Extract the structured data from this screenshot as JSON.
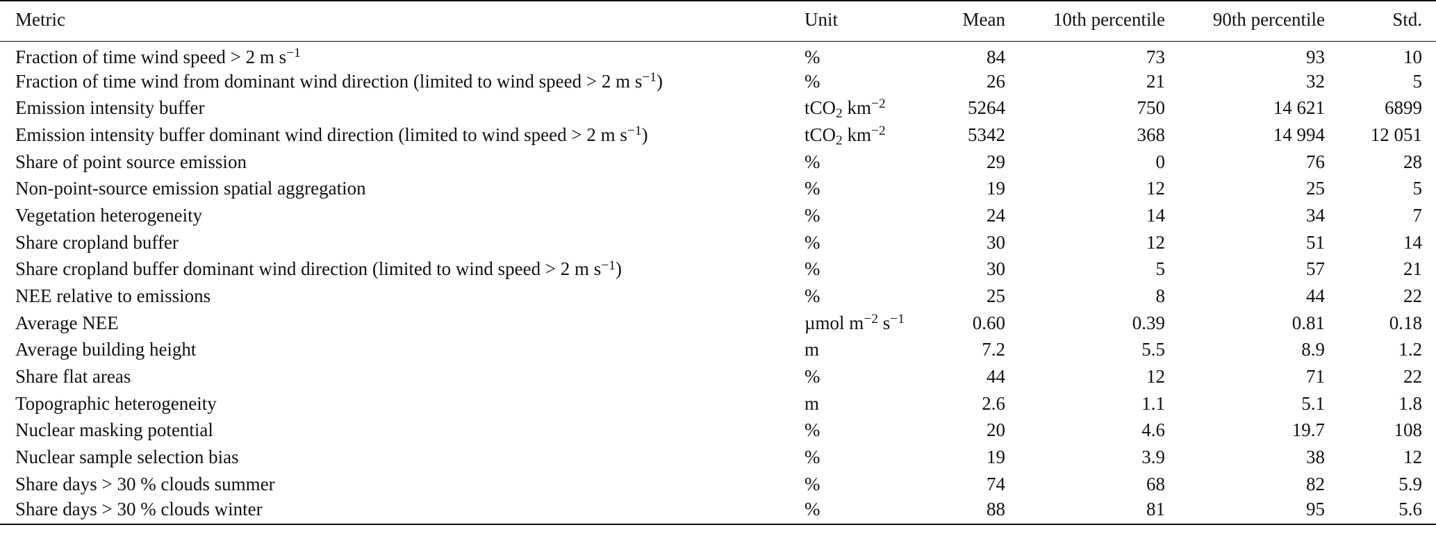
{
  "table": {
    "headers": {
      "metric": "Metric",
      "unit": "Unit",
      "mean": "Mean",
      "p10": "10th percentile",
      "p90": "90th percentile",
      "std": "Std."
    },
    "rows": [
      {
        "metric": "Fraction of time wind speed > 2 m s⁻¹",
        "metric_parts": [
          [
            "t",
            "Fraction of time wind speed > 2 m s"
          ],
          [
            "sup",
            "−1"
          ]
        ],
        "unit_parts": [
          [
            "t",
            "%"
          ]
        ],
        "mean": "84",
        "p10": "73",
        "p90": "93",
        "std": "10"
      },
      {
        "metric": "Fraction of time wind from dominant wind direction (limited to wind speed > 2 m s⁻¹)",
        "metric_parts": [
          [
            "t",
            "Fraction of time wind from dominant wind direction (limited to wind speed > 2 m s"
          ],
          [
            "sup",
            "−1"
          ],
          [
            "t",
            ")"
          ]
        ],
        "unit_parts": [
          [
            "t",
            "%"
          ]
        ],
        "mean": "26",
        "p10": "21",
        "p90": "32",
        "std": "5"
      },
      {
        "metric": "Emission intensity buffer",
        "metric_parts": [
          [
            "t",
            "Emission intensity buffer"
          ]
        ],
        "unit_parts": [
          [
            "t",
            "tCO"
          ],
          [
            "sub",
            "2"
          ],
          [
            "t",
            " km"
          ],
          [
            "sup",
            "−2"
          ]
        ],
        "mean": "5264",
        "p10": "750",
        "p90": "14 621",
        "std": "6899"
      },
      {
        "metric": "Emission intensity buffer dominant wind direction (limited to wind speed > 2 m s⁻¹)",
        "metric_parts": [
          [
            "t",
            "Emission intensity buffer dominant wind direction (limited to wind speed > 2 m s"
          ],
          [
            "sup",
            "−1"
          ],
          [
            "t",
            ")"
          ]
        ],
        "unit_parts": [
          [
            "t",
            "tCO"
          ],
          [
            "sub",
            "2"
          ],
          [
            "t",
            " km"
          ],
          [
            "sup",
            "−2"
          ]
        ],
        "mean": "5342",
        "p10": "368",
        "p90": "14 994",
        "std": "12 051"
      },
      {
        "metric": "Share of point source emission",
        "metric_parts": [
          [
            "t",
            "Share of point source emission"
          ]
        ],
        "unit_parts": [
          [
            "t",
            "%"
          ]
        ],
        "mean": "29",
        "p10": "0",
        "p90": "76",
        "std": "28"
      },
      {
        "metric": "Non-point-source emission spatial aggregation",
        "metric_parts": [
          [
            "t",
            "Non-point-source emission spatial aggregation"
          ]
        ],
        "unit_parts": [
          [
            "t",
            "%"
          ]
        ],
        "mean": "19",
        "p10": "12",
        "p90": "25",
        "std": "5"
      },
      {
        "metric": "Vegetation heterogeneity",
        "metric_parts": [
          [
            "t",
            "Vegetation heterogeneity"
          ]
        ],
        "unit_parts": [
          [
            "t",
            "%"
          ]
        ],
        "mean": "24",
        "p10": "14",
        "p90": "34",
        "std": "7"
      },
      {
        "metric": "Share cropland buffer",
        "metric_parts": [
          [
            "t",
            "Share cropland buffer"
          ]
        ],
        "unit_parts": [
          [
            "t",
            "%"
          ]
        ],
        "mean": "30",
        "p10": "12",
        "p90": "51",
        "std": "14"
      },
      {
        "metric": "Share cropland buffer dominant wind direction (limited to wind speed > 2 m s⁻¹)",
        "metric_parts": [
          [
            "t",
            "Share cropland buffer dominant wind direction (limited to wind speed > 2 m s"
          ],
          [
            "sup",
            "−1"
          ],
          [
            "t",
            ")"
          ]
        ],
        "unit_parts": [
          [
            "t",
            "%"
          ]
        ],
        "mean": "30",
        "p10": "5",
        "p90": "57",
        "std": "21"
      },
      {
        "metric": "NEE relative to emissions",
        "metric_parts": [
          [
            "t",
            "NEE relative to emissions"
          ]
        ],
        "unit_parts": [
          [
            "t",
            "%"
          ]
        ],
        "mean": "25",
        "p10": "8",
        "p90": "44",
        "std": "22"
      },
      {
        "metric": "Average NEE",
        "metric_parts": [
          [
            "t",
            "Average NEE"
          ]
        ],
        "unit_parts": [
          [
            "t",
            "µmol m"
          ],
          [
            "sup",
            "−2"
          ],
          [
            "t",
            " s"
          ],
          [
            "sup",
            "−1"
          ]
        ],
        "mean": "0.60",
        "p10": "0.39",
        "p90": "0.81",
        "std": "0.18"
      },
      {
        "metric": "Average building height",
        "metric_parts": [
          [
            "t",
            "Average building height"
          ]
        ],
        "unit_parts": [
          [
            "t",
            "m"
          ]
        ],
        "mean": "7.2",
        "p10": "5.5",
        "p90": "8.9",
        "std": "1.2"
      },
      {
        "metric": "Share flat areas",
        "metric_parts": [
          [
            "t",
            "Share flat areas"
          ]
        ],
        "unit_parts": [
          [
            "t",
            "%"
          ]
        ],
        "mean": "44",
        "p10": "12",
        "p90": "71",
        "std": "22"
      },
      {
        "metric": "Topographic heterogeneity",
        "metric_parts": [
          [
            "t",
            "Topographic heterogeneity"
          ]
        ],
        "unit_parts": [
          [
            "t",
            "m"
          ]
        ],
        "mean": "2.6",
        "p10": "1.1",
        "p90": "5.1",
        "std": "1.8"
      },
      {
        "metric": "Nuclear masking potential",
        "metric_parts": [
          [
            "t",
            "Nuclear masking potential"
          ]
        ],
        "unit_parts": [
          [
            "t",
            "%"
          ]
        ],
        "mean": "20",
        "p10": "4.6",
        "p90": "19.7",
        "std": "108"
      },
      {
        "metric": "Nuclear sample selection bias",
        "metric_parts": [
          [
            "t",
            "Nuclear sample selection bias"
          ]
        ],
        "unit_parts": [
          [
            "t",
            "%"
          ]
        ],
        "mean": "19",
        "p10": "3.9",
        "p90": "38",
        "std": "12"
      },
      {
        "metric": "Share days > 30 % clouds summer",
        "metric_parts": [
          [
            "t",
            "Share days > 30 % clouds summer"
          ]
        ],
        "unit_parts": [
          [
            "t",
            "%"
          ]
        ],
        "mean": "74",
        "p10": "68",
        "p90": "82",
        "std": "5.9"
      },
      {
        "metric": "Share days > 30 % clouds winter",
        "metric_parts": [
          [
            "t",
            "Share days > 30 % clouds winter"
          ]
        ],
        "unit_parts": [
          [
            "t",
            "%"
          ]
        ],
        "mean": "88",
        "p10": "81",
        "p90": "95",
        "std": "5.6"
      }
    ]
  }
}
